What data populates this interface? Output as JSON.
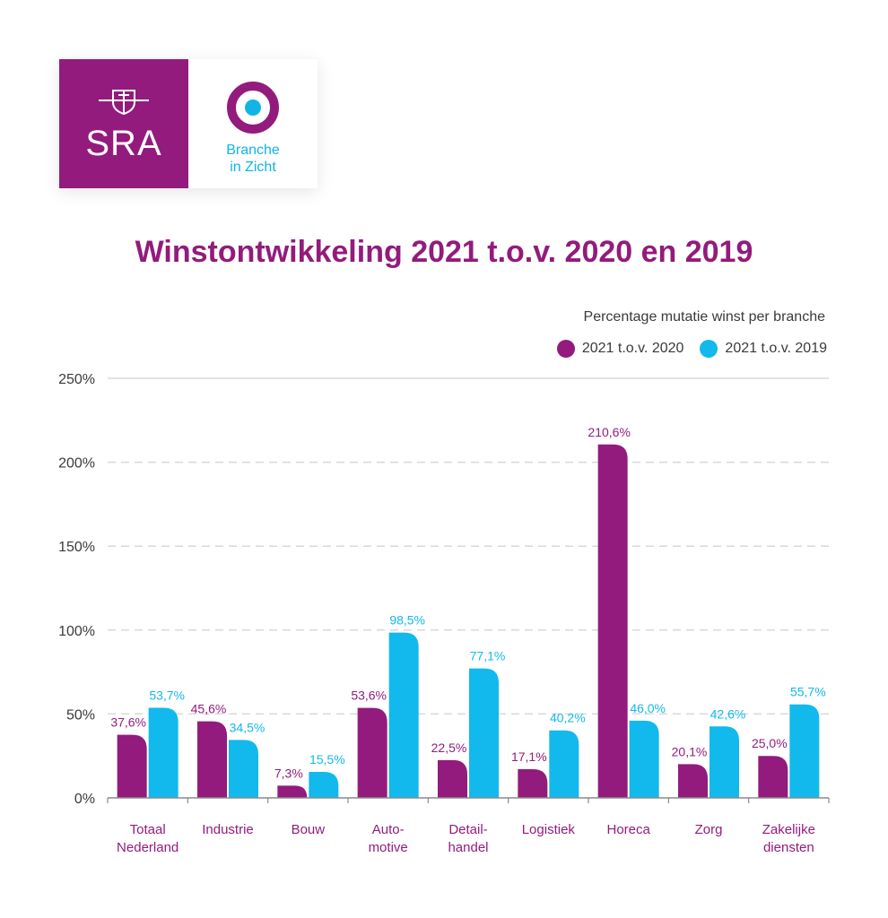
{
  "logo": {
    "sra_text": "SRA",
    "biz_line1": "Branche",
    "biz_line2": "in Zicht"
  },
  "colors": {
    "purple": "#931b7d",
    "cyan": "#12b9ec",
    "axis_text": "#3a3a3a",
    "grid": "#d9d9d9"
  },
  "chart_data": {
    "type": "bar",
    "title": "Winstontwikkeling 2021 t.o.v. 2020 en 2019",
    "subtitle": "Percentage mutatie winst per branche",
    "categories": [
      [
        "Totaal",
        "Nederland"
      ],
      [
        "Industrie"
      ],
      [
        "Bouw"
      ],
      [
        "Auto-",
        "motive"
      ],
      [
        "Detail-",
        "handel"
      ],
      [
        "Logistiek"
      ],
      [
        "Horeca"
      ],
      [
        "Zorg"
      ],
      [
        "Zakelijke",
        "diensten"
      ]
    ],
    "series": [
      {
        "name": "2021 t.o.v. 2020",
        "color": "#931b7d",
        "values": [
          37.6,
          45.6,
          7.3,
          53.6,
          22.5,
          17.1,
          210.6,
          20.1,
          25.0
        ],
        "labels": [
          "37,6%",
          "45,6%",
          "7,3%",
          "53,6%",
          "22,5%",
          "17,1%",
          "210,6%",
          "20,1%",
          "25,0%"
        ]
      },
      {
        "name": "2021 t.o.v. 2019",
        "color": "#12b9ec",
        "values": [
          53.7,
          34.5,
          15.5,
          98.5,
          77.1,
          40.2,
          46.0,
          42.6,
          55.7
        ],
        "labels": [
          "53,7%",
          "34,5%",
          "15,5%",
          "98,5%",
          "77,1%",
          "40,2%",
          "46,0%",
          "42,6%",
          "55,7%"
        ]
      }
    ],
    "ylim": [
      0,
      250
    ],
    "yticks": [
      0,
      50,
      100,
      150,
      200,
      250
    ],
    "ytick_labels": [
      "0%",
      "50%",
      "100%",
      "150%",
      "200%",
      "250%"
    ],
    "grid": true,
    "legend_position": "top-right"
  }
}
